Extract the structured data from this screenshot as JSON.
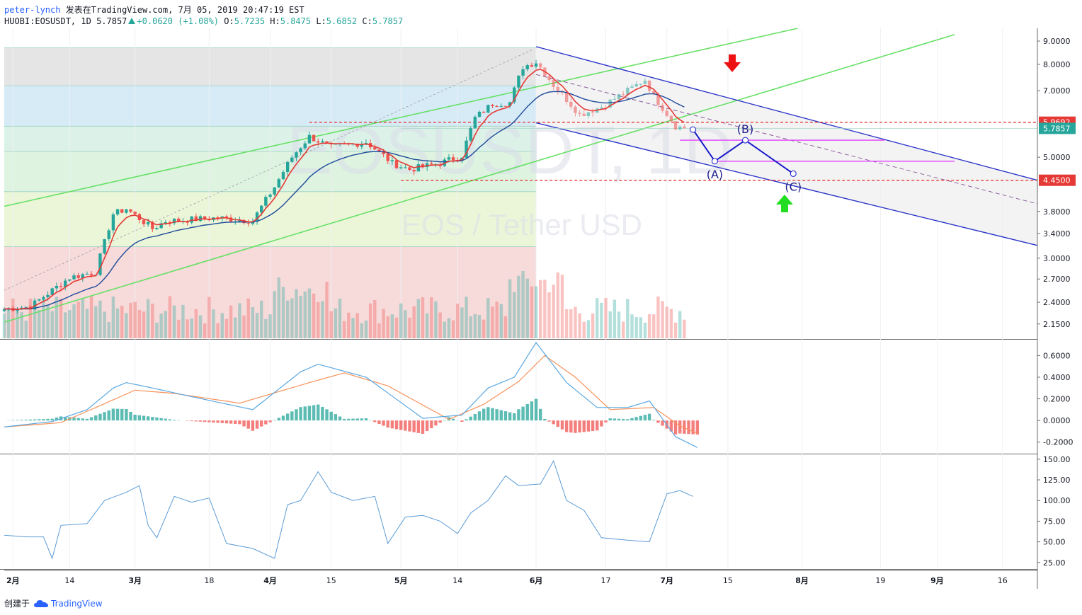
{
  "header": {
    "user": "peter-lynch",
    "published": "发表在TradingView.com, 7月 05, 2019 20:47:19 EST",
    "symbol": "HUOBI:EOSUSDT, 1D",
    "last": "5.7857",
    "change": "+0.0620 (+1.08%)",
    "ohlc": [
      {
        "k": "O:",
        "v": "5.7235"
      },
      {
        "k": "H:",
        "v": "5.8475"
      },
      {
        "k": "L:",
        "v": "5.6852"
      },
      {
        "k": "C:",
        "v": "5.7857"
      }
    ]
  },
  "watermark": {
    "symbol": "EOSUSDT, 1D",
    "name": "EOS / Tether USD"
  },
  "footer": {
    "created": "创建于",
    "brand": "TradingView"
  },
  "colors": {
    "up": "#26a69a",
    "down": "#ef5350",
    "ema_fast": "#e53935",
    "ema_slow": "#1e4b9a",
    "channel_green": "#66e066",
    "channel_blue": "#2b35c8",
    "level_red": "#e53935",
    "magenta": "#e040fb",
    "macd": "#5aa7e0",
    "signal": "#f7925a",
    "cci": "#5b9bd5"
  },
  "chart_data": [
    {
      "type": "candlestick",
      "panel": "price",
      "log_scale": true,
      "y_ticks": [
        "9.0000",
        "8.0000",
        "7.0000",
        "5.0000",
        "3.8000",
        "3.4000",
        "3.0000",
        "2.7000",
        "2.4000",
        "2.1500"
      ],
      "y_tick_values": [
        9.0,
        8.0,
        7.0,
        5.0,
        3.8,
        3.4,
        3.0,
        2.7,
        2.4,
        2.15
      ],
      "ylim": [
        2.0,
        9.6
      ],
      "x_labels": [
        "2月",
        "14",
        "3月",
        "18",
        "4月",
        "15",
        "5月",
        "14",
        "6月",
        "17",
        "7月",
        "15",
        "8月",
        "19",
        "9月",
        "16"
      ],
      "x_label_dates": [
        "2019-02-01",
        "2019-02-14",
        "2019-03-01",
        "2019-03-18",
        "2019-04-01",
        "2019-04-15",
        "2019-05-01",
        "2019-05-14",
        "2019-06-01",
        "2019-06-17",
        "2019-07-01",
        "2019-07-15",
        "2019-08-01",
        "2019-08-19",
        "2019-09-01",
        "2019-09-16"
      ],
      "date_range": [
        "2019-01-30",
        "2019-09-24"
      ],
      "close_anchors": [
        [
          "2019-01-30",
          2.32
        ],
        [
          "2019-02-05",
          2.35
        ],
        [
          "2019-02-10",
          2.55
        ],
        [
          "2019-02-14",
          2.72
        ],
        [
          "2019-02-20",
          2.8
        ],
        [
          "2019-02-22",
          3.25
        ],
        [
          "2019-02-24",
          3.75
        ],
        [
          "2019-02-27",
          3.85
        ],
        [
          "2019-03-05",
          3.48
        ],
        [
          "2019-03-08",
          3.62
        ],
        [
          "2019-03-14",
          3.65
        ],
        [
          "2019-03-20",
          3.68
        ],
        [
          "2019-03-28",
          3.62
        ],
        [
          "2019-04-02",
          4.3
        ],
        [
          "2019-04-06",
          5.0
        ],
        [
          "2019-04-10",
          5.55
        ],
        [
          "2019-04-15",
          5.25
        ],
        [
          "2019-04-23",
          5.4
        ],
        [
          "2019-04-29",
          4.85
        ],
        [
          "2019-05-03",
          4.7
        ],
        [
          "2019-05-10",
          4.85
        ],
        [
          "2019-05-15",
          5.05
        ],
        [
          "2019-05-18",
          6.1
        ],
        [
          "2019-05-22",
          6.55
        ],
        [
          "2019-05-26",
          6.6
        ],
        [
          "2019-05-29",
          7.9
        ],
        [
          "2019-06-01",
          8.1
        ],
        [
          "2019-06-05",
          7.2
        ],
        [
          "2019-06-11",
          6.2
        ],
        [
          "2019-06-16",
          6.45
        ],
        [
          "2019-06-22",
          7.0
        ],
        [
          "2019-06-26",
          7.4
        ],
        [
          "2019-06-28",
          6.8
        ],
        [
          "2019-07-03",
          5.85
        ],
        [
          "2019-07-05",
          5.79
        ]
      ],
      "ema_fast_label": "",
      "ema_slow_label": "",
      "horizontal_levels": [
        {
          "label": "5.9692",
          "value": 5.9692,
          "color": "#e53935"
        },
        {
          "label": "4.4500",
          "value": 4.45,
          "color": "#e53935"
        },
        {
          "label": "5.7857",
          "value": 5.7857,
          "color": "#26a69a"
        }
      ],
      "fib_zones": [
        {
          "from": 8.7,
          "to": 7.18,
          "color": "#e0e0e0"
        },
        {
          "from": 7.18,
          "to": 5.85,
          "color": "#cfe7f5"
        },
        {
          "from": 5.85,
          "to": 5.15,
          "color": "#d6f0e4"
        },
        {
          "from": 5.15,
          "to": 4.2,
          "color": "#d8f1da"
        },
        {
          "from": 4.2,
          "to": 3.18,
          "color": "#e8f4d2"
        },
        {
          "from": 3.18,
          "to": 2.0,
          "color": "#f6d4d4"
        }
      ],
      "wave_labels": [
        "(A)",
        "(B)",
        "(C)"
      ],
      "wave_points": [
        {
          "date": "2019-07-07",
          "value": 5.75
        },
        {
          "date": "2019-07-12",
          "value": 4.9
        },
        {
          "date": "2019-07-19",
          "value": 5.45
        },
        {
          "date": "2019-07-30",
          "value": 4.6
        }
      ]
    },
    {
      "type": "line",
      "panel": "macd",
      "y_ticks": [
        "0.6000",
        "0.4000",
        "0.2000",
        "0.0000",
        "-0.2000"
      ],
      "y_tick_values": [
        0.6,
        0.4,
        0.2,
        0.0,
        -0.2
      ],
      "ylim": [
        -0.3,
        0.74
      ],
      "macd_anchors": [
        [
          "2019-01-30",
          -0.06
        ],
        [
          "2019-02-10",
          -0.01
        ],
        [
          "2019-02-18",
          0.1
        ],
        [
          "2019-02-24",
          0.3
        ],
        [
          "2019-02-27",
          0.35
        ],
        [
          "2019-03-05",
          0.3
        ],
        [
          "2019-03-14",
          0.22
        ],
        [
          "2019-03-28",
          0.1
        ],
        [
          "2019-04-08",
          0.45
        ],
        [
          "2019-04-12",
          0.52
        ],
        [
          "2019-04-23",
          0.4
        ],
        [
          "2019-05-06",
          0.02
        ],
        [
          "2019-05-15",
          0.05
        ],
        [
          "2019-05-21",
          0.3
        ],
        [
          "2019-05-27",
          0.4
        ],
        [
          "2019-06-01",
          0.72
        ],
        [
          "2019-06-08",
          0.35
        ],
        [
          "2019-06-15",
          0.12
        ],
        [
          "2019-06-22",
          0.12
        ],
        [
          "2019-06-27",
          0.18
        ],
        [
          "2019-07-03",
          -0.15
        ],
        [
          "2019-07-08",
          -0.25
        ]
      ],
      "signal_anchors": [
        [
          "2019-01-30",
          -0.06
        ],
        [
          "2019-02-12",
          -0.02
        ],
        [
          "2019-02-20",
          0.12
        ],
        [
          "2019-03-01",
          0.28
        ],
        [
          "2019-03-10",
          0.25
        ],
        [
          "2019-03-25",
          0.16
        ],
        [
          "2019-04-10",
          0.35
        ],
        [
          "2019-04-18",
          0.44
        ],
        [
          "2019-04-28",
          0.32
        ],
        [
          "2019-05-12",
          0.01
        ],
        [
          "2019-05-20",
          0.15
        ],
        [
          "2019-05-28",
          0.36
        ],
        [
          "2019-06-03",
          0.6
        ],
        [
          "2019-06-10",
          0.4
        ],
        [
          "2019-06-18",
          0.1
        ],
        [
          "2019-06-28",
          0.12
        ],
        [
          "2019-07-04",
          -0.05
        ],
        [
          "2019-07-08",
          -0.12
        ]
      ]
    },
    {
      "type": "line",
      "panel": "cci",
      "y_ticks": [
        "150.00",
        "125.00",
        "100.00",
        "75.00",
        "50.00",
        "25.00"
      ],
      "y_tick_values": [
        150,
        125,
        100,
        75,
        50,
        25
      ],
      "ylim": [
        18,
        155
      ],
      "anchors": [
        [
          "2019-01-30",
          58
        ],
        [
          "2019-02-04",
          56
        ],
        [
          "2019-02-08",
          56
        ],
        [
          "2019-02-10",
          30
        ],
        [
          "2019-02-12",
          70
        ],
        [
          "2019-02-18",
          72
        ],
        [
          "2019-02-22",
          100
        ],
        [
          "2019-02-27",
          110
        ],
        [
          "2019-03-02",
          118
        ],
        [
          "2019-03-04",
          70
        ],
        [
          "2019-03-06",
          55
        ],
        [
          "2019-03-10",
          105
        ],
        [
          "2019-03-14",
          98
        ],
        [
          "2019-03-18",
          103
        ],
        [
          "2019-03-22",
          48
        ],
        [
          "2019-03-28",
          42
        ],
        [
          "2019-04-02",
          30
        ],
        [
          "2019-04-05",
          95
        ],
        [
          "2019-04-08",
          100
        ],
        [
          "2019-04-12",
          135
        ],
        [
          "2019-04-15",
          110
        ],
        [
          "2019-04-20",
          100
        ],
        [
          "2019-04-25",
          105
        ],
        [
          "2019-04-28",
          48
        ],
        [
          "2019-05-02",
          80
        ],
        [
          "2019-05-06",
          82
        ],
        [
          "2019-05-10",
          75
        ],
        [
          "2019-05-14",
          60
        ],
        [
          "2019-05-17",
          85
        ],
        [
          "2019-05-21",
          100
        ],
        [
          "2019-05-25",
          130
        ],
        [
          "2019-05-28",
          118
        ],
        [
          "2019-06-02",
          120
        ],
        [
          "2019-06-05",
          148
        ],
        [
          "2019-06-08",
          100
        ],
        [
          "2019-06-12",
          88
        ],
        [
          "2019-06-16",
          55
        ],
        [
          "2019-06-22",
          52
        ],
        [
          "2019-06-27",
          50
        ],
        [
          "2019-07-01",
          108
        ],
        [
          "2019-07-04",
          112
        ],
        [
          "2019-07-07",
          105
        ]
      ]
    }
  ]
}
